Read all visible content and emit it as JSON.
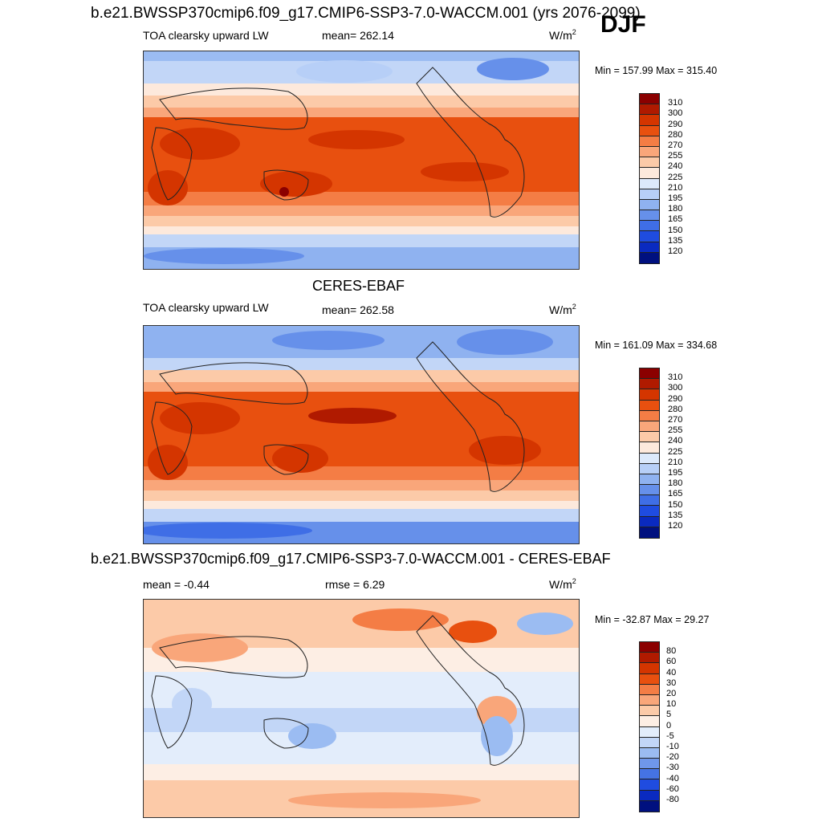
{
  "figure": {
    "case_title": "b.e21.BWSSP370cmip6.f09_g17.CMIP6-SSP3-7.0-WACCM.001 (yrs 2076-2099)",
    "season": "DJF"
  },
  "panels": [
    {
      "variable": "TOA clearsky upward LW",
      "mean_text": "mean= 262.14",
      "units": "W/m",
      "units_sup": "2",
      "minmax": "Min = 157.99 Max = 315.40"
    },
    {
      "title": "CERES-EBAF",
      "variable": "TOA clearsky upward LW",
      "mean_text": "mean= 262.58",
      "units": "W/m",
      "units_sup": "2",
      "minmax": "Min = 161.09 Max = 334.68"
    },
    {
      "title": "b.e21.BWSSP370cmip6.f09_g17.CMIP6-SSP3-7.0-WACCM.001 - CERES-EBAF",
      "mean_text": "mean =  -0.44",
      "rmse_text": "rmse =   6.29",
      "units": "W/m",
      "units_sup": "2",
      "minmax": "Min = -32.87 Max =  29.27"
    }
  ],
  "colorbars": {
    "absolute": {
      "labels": [
        "310",
        "300",
        "290",
        "280",
        "270",
        "255",
        "240",
        "225",
        "210",
        "195",
        "180",
        "165",
        "150",
        "135",
        "120"
      ],
      "colors": [
        "#8b0000",
        "#b01a00",
        "#d43500",
        "#e8500f",
        "#f47d45",
        "#f9a67a",
        "#fccaa8",
        "#fde9dc",
        "#dce9fb",
        "#b7cff7",
        "#8fb2f0",
        "#6690ea",
        "#3f6ee6",
        "#1f4ce0",
        "#0a2ac0",
        "#00107f"
      ]
    },
    "difference": {
      "labels": [
        "80",
        "60",
        "40",
        "30",
        "20",
        "10",
        "5",
        "0",
        "-5",
        "-10",
        "-20",
        "-30",
        "-40",
        "-60",
        "-80"
      ],
      "colors": [
        "#8b0000",
        "#b01a00",
        "#d43500",
        "#e8500f",
        "#f47d45",
        "#f9a67a",
        "#fccaa8",
        "#fdeee4",
        "#e3edfb",
        "#c2d6f7",
        "#9bbcf2",
        "#6f97ea",
        "#4573e4",
        "#1f4ce0",
        "#0a2ac0",
        "#00107f"
      ]
    }
  }
}
